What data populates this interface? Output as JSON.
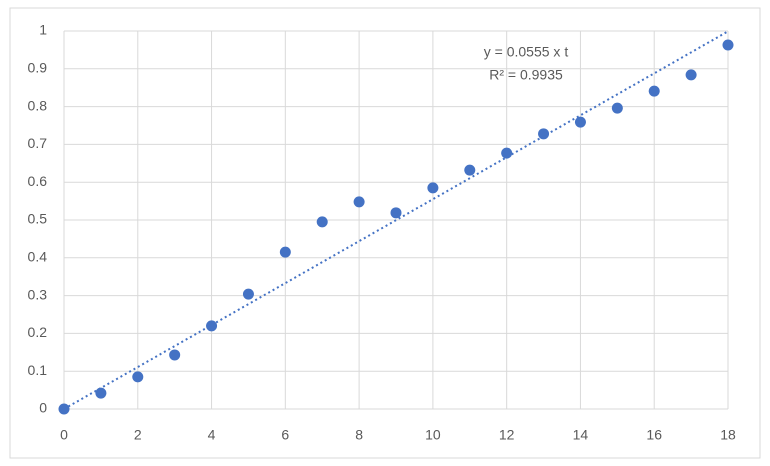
{
  "chart_data": {
    "type": "scatter",
    "x": [
      0,
      1,
      2,
      3,
      4,
      5,
      6,
      7,
      8,
      9,
      10,
      11,
      12,
      13,
      14,
      15,
      16,
      17,
      18
    ],
    "values": [
      0,
      0.042,
      0.085,
      0.143,
      0.22,
      0.304,
      0.415,
      0.495,
      0.548,
      0.519,
      0.585,
      0.632,
      0.677,
      0.728,
      0.759,
      0.796,
      0.841,
      0.884,
      0.963
    ],
    "color": "#4472c4",
    "xlim": [
      0,
      18
    ],
    "xticks": [
      0,
      2,
      4,
      6,
      8,
      10,
      12,
      14,
      16,
      18
    ],
    "ylim": [
      0,
      1
    ],
    "yticks": [
      0,
      0.1,
      0.2,
      0.3,
      0.4,
      0.5,
      0.6,
      0.7,
      0.8,
      0.9,
      1
    ],
    "grid": true,
    "trendline": {
      "slope": 0.0555,
      "equation": "y = 0.0555 x t",
      "r2": "R² = 0.9935"
    }
  }
}
